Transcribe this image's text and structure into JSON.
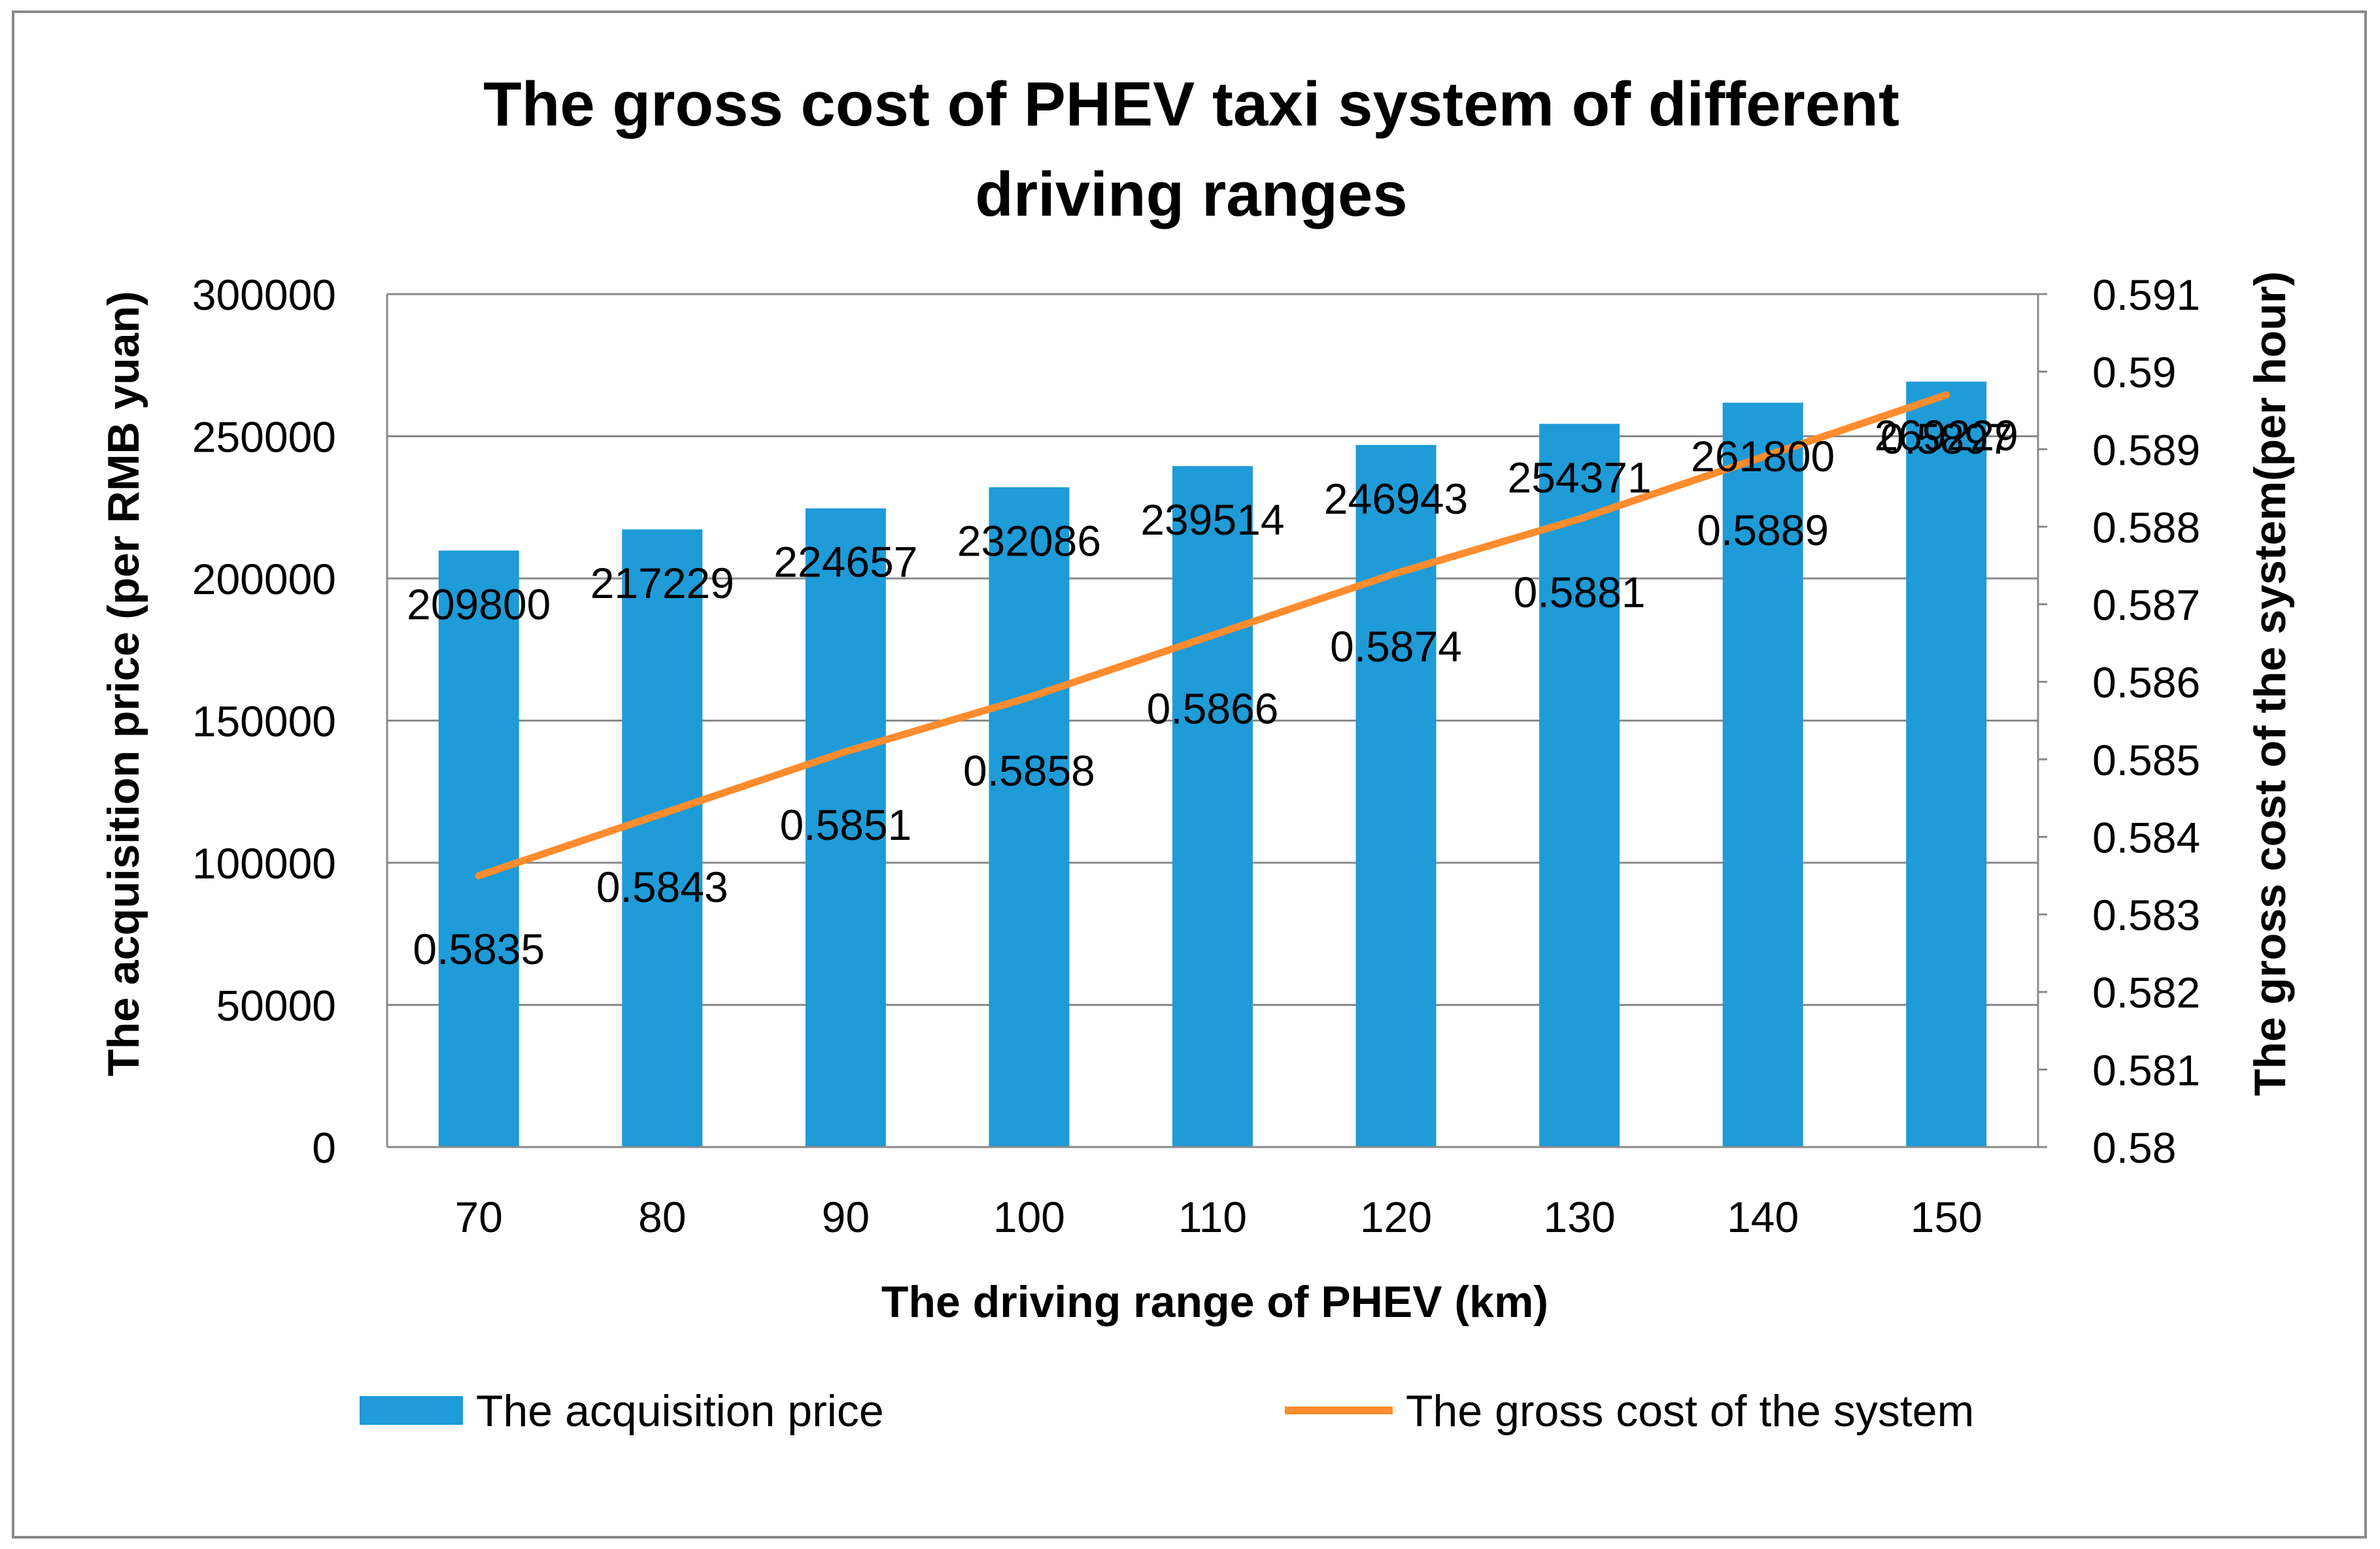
{
  "chart_data": {
    "type": "bar",
    "title": "The gross cost of PHEV taxi system of different driving  ranges",
    "title_lines": [
      "The gross cost of PHEV taxi system of different",
      "driving  ranges"
    ],
    "xlabel": "The driving range of PHEV (km)",
    "ylabel": "The acquisition price (per RMB yuan)",
    "y2label": "The gross cost of the system(per hour)",
    "categories": [
      "70",
      "80",
      "90",
      "100",
      "110",
      "120",
      "130",
      "140",
      "150"
    ],
    "ylim": [
      0,
      300000
    ],
    "yticks": [
      "0",
      "50000",
      "100000",
      "150000",
      "200000",
      "250000",
      "300000"
    ],
    "y2lim": [
      0.58,
      0.591
    ],
    "y2ticks": [
      "0.58",
      "0.581",
      "0.582",
      "0.583",
      "0.584",
      "0.585",
      "0.586",
      "0.587",
      "0.588",
      "0.589",
      "0.59",
      "0.591"
    ],
    "grid": true,
    "legend_position": "bottom",
    "series": [
      {
        "name": "The acquisition price",
        "type": "bar",
        "axis": "left",
        "color": "#1F9BD7",
        "values": [
          209800,
          217229,
          224657,
          232086,
          239514,
          246943,
          254371,
          261800,
          269229
        ],
        "labels": [
          "209800",
          "217229",
          "224657",
          "232086",
          "239514",
          "246943",
          "254371",
          "261800",
          "269229"
        ]
      },
      {
        "name": "The gross cost of the system",
        "type": "line",
        "axis": "right",
        "color": "#FF8C2E",
        "values": [
          0.5835,
          0.5843,
          0.5851,
          0.5858,
          0.5866,
          0.5874,
          0.5881,
          0.5889,
          0.5897
        ],
        "labels": [
          "0.5835",
          "0.5843",
          "0.5851",
          "0.5858",
          "0.5866",
          "0.5874",
          "0.5881",
          "0.5889",
          "0.5897"
        ]
      }
    ]
  }
}
